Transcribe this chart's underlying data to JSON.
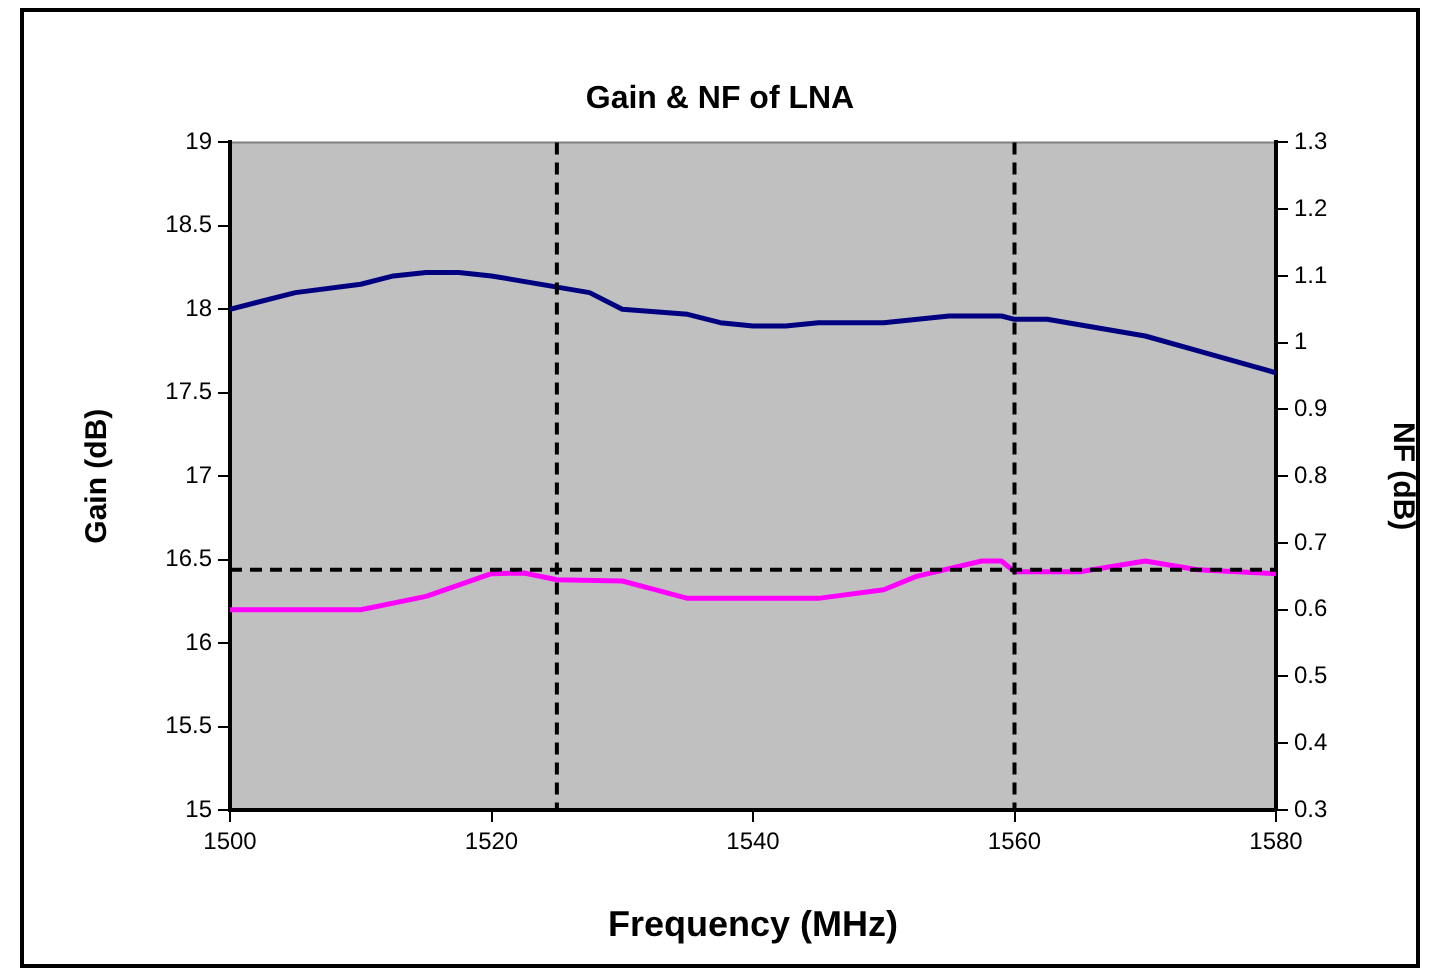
{
  "chart_data": {
    "type": "line",
    "title": "Gain & NF of LNA",
    "xlabel": "Frequency (MHz)",
    "ylabel": "Gain (dB)",
    "y2label": "NF (dB)",
    "xlim": [
      1500,
      1580
    ],
    "xticks": [
      1500,
      1520,
      1540,
      1560,
      1580
    ],
    "ylim": [
      15,
      19
    ],
    "yticks": [
      15,
      15.5,
      16,
      16.5,
      17,
      17.5,
      18,
      18.5,
      19
    ],
    "y2lim": [
      0.3,
      1.3
    ],
    "y2ticks": [
      0.3,
      0.4,
      0.5,
      0.6,
      0.7,
      0.8,
      0.9,
      1,
      1.1,
      1.2,
      1.3
    ],
    "grid": false,
    "legend": false,
    "marker": "none",
    "line_style": "solid",
    "series": [
      {
        "color": "#000080",
        "x": [
          1500,
          1505,
          1510,
          1512.5,
          1515,
          1517.5,
          1520,
          1527.5,
          1530,
          1535,
          1537.5,
          1540,
          1542.5,
          1545,
          1550,
          1555,
          1559,
          1560,
          1562.5,
          1570,
          1575,
          1580
        ],
        "values": [
          18.0,
          18.1,
          18.15,
          18.2,
          18.22,
          18.22,
          18.2,
          18.1,
          18.0,
          17.97,
          17.92,
          17.9,
          17.9,
          17.92,
          17.92,
          17.96,
          17.96,
          17.94,
          17.94,
          17.84,
          17.73,
          17.62
        ]
      },
      {
        "color": "#ff00ff",
        "axis": "y2",
        "x": [
          1500,
          1510,
          1515,
          1520,
          1522.5,
          1525,
          1530,
          1532.5,
          1535,
          1545,
          1550,
          1552.5,
          1557.5,
          1559,
          1560,
          1565,
          1570,
          1574,
          1580
        ],
        "values": [
          0.6,
          0.6,
          0.62,
          0.654,
          0.655,
          0.645,
          0.643,
          0.63,
          0.617,
          0.617,
          0.63,
          0.65,
          0.673,
          0.673,
          0.657,
          0.657,
          0.673,
          0.66,
          0.654
        ]
      }
    ],
    "ref_lines": [
      {
        "axis": "x",
        "value": 1525,
        "color": "#000000",
        "line_style": "dashed"
      },
      {
        "axis": "x",
        "value": 1560,
        "color": "#000000",
        "line_style": "dashed"
      },
      {
        "axis": "y2",
        "value": 0.66,
        "color": "#000000",
        "line_style": "dashed"
      }
    ]
  }
}
